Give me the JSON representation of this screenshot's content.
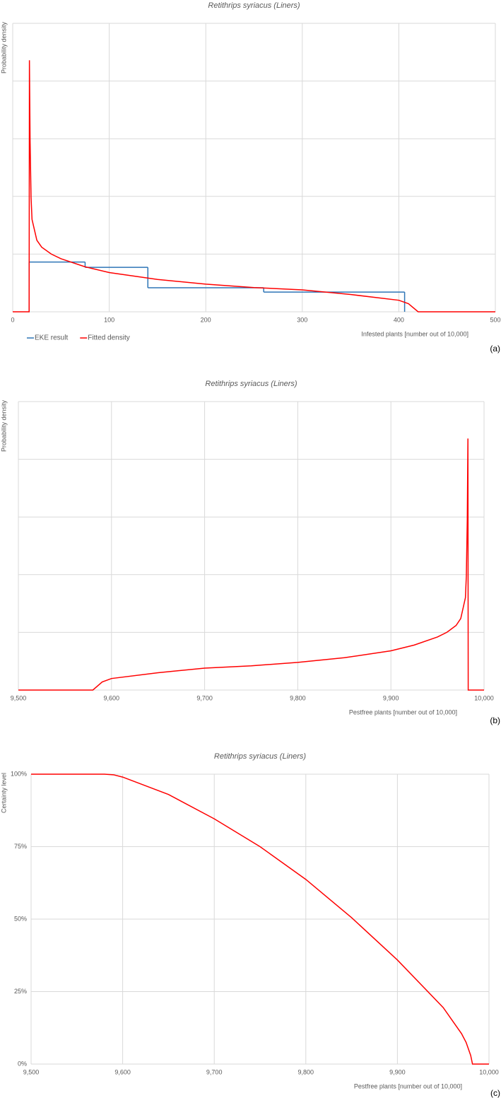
{
  "chart_data": [
    {
      "type": "line",
      "title": "Retithrips syriacus (Liners)",
      "y_label": "Probability density",
      "x_label": "Infested plants [number out of 10,000]",
      "panel_label": "(a)",
      "xlim": [
        0,
        500
      ],
      "xticks": [
        0,
        100,
        200,
        300,
        400,
        500
      ],
      "ylim": [
        0,
        0.025
      ],
      "ygrid": [
        0,
        0.005,
        0.01,
        0.015,
        0.02,
        0.025
      ],
      "grid": true,
      "legend": "bottom-left",
      "series": [
        {
          "name": "EKE result",
          "color": "#2e75b6",
          "kind": "step",
          "bins": [
            17,
            75,
            140,
            260,
            406
          ],
          "values": [
            0.00431,
            0.00385,
            0.00208,
            0.00171
          ]
        },
        {
          "name": "Fitted density",
          "color": "#ff0000",
          "kind": "line",
          "x": [
            0,
            17,
            17.3,
            18,
            19,
            20,
            25,
            30,
            40,
            50,
            75,
            100,
            150,
            200,
            250,
            300,
            350,
            400,
            410,
            420,
            500
          ],
          "values": [
            0,
            0,
            0.0218,
            0.0148,
            0.0099,
            0.008,
            0.0062,
            0.0056,
            0.005,
            0.0046,
            0.0039,
            0.0034,
            0.0028,
            0.0024,
            0.0021,
            0.0019,
            0.0015,
            0.001,
            0.0007,
            0,
            0
          ]
        }
      ]
    },
    {
      "type": "line",
      "title": "Retithrips syriacus (Liners)",
      "y_label": "Probability density",
      "x_label": "Pestfree plants [number out of 10,000]",
      "panel_label": "(b)",
      "xlim": [
        9500,
        10000
      ],
      "xticks": [
        {
          "value": 9500,
          "label": "9,500"
        },
        {
          "value": 9600,
          "label": "9,600"
        },
        {
          "value": 9700,
          "label": "9,700"
        },
        {
          "value": 9800,
          "label": "9,800"
        },
        {
          "value": 9900,
          "label": "9,900"
        },
        {
          "value": 10000,
          "label": "10,000"
        }
      ],
      "ylim": [
        0,
        0.025
      ],
      "ygrid": [
        0,
        0.005,
        0.01,
        0.015,
        0.02,
        0.025
      ],
      "grid": true,
      "series": [
        {
          "color": "#ff0000",
          "kind": "line",
          "x": [
            9500,
            9580,
            9590,
            9600,
            9650,
            9700,
            9750,
            9800,
            9850,
            9900,
            9925,
            9950,
            9960,
            9970,
            9975,
            9980,
            9981,
            9982,
            9982.7,
            9983,
            10000
          ],
          "values": [
            0,
            0,
            0.0007,
            0.001,
            0.0015,
            0.0019,
            0.0021,
            0.0024,
            0.0028,
            0.0034,
            0.0039,
            0.0046,
            0.005,
            0.0056,
            0.0062,
            0.008,
            0.0099,
            0.0148,
            0.0218,
            0,
            0
          ]
        }
      ]
    },
    {
      "type": "line",
      "title": "Retithrips syriacus (Liners)",
      "y_label": "Certainty level",
      "x_label": "Pestfree plants [number out of 10,000]",
      "panel_label": "(c)",
      "xlim": [
        9500,
        10000
      ],
      "xticks": [
        {
          "value": 9500,
          "label": "9,500"
        },
        {
          "value": 9600,
          "label": "9,600"
        },
        {
          "value": 9700,
          "label": "9,700"
        },
        {
          "value": 9800,
          "label": "9,800"
        },
        {
          "value": 9900,
          "label": "9,900"
        },
        {
          "value": 10000,
          "label": "10,000"
        }
      ],
      "ylim": [
        0,
        100
      ],
      "yticks": [
        {
          "value": 0,
          "label": "0%"
        },
        {
          "value": 25,
          "label": "25%"
        },
        {
          "value": 50,
          "label": "50%"
        },
        {
          "value": 75,
          "label": "75%"
        },
        {
          "value": 100,
          "label": "100%"
        }
      ],
      "grid": true,
      "series": [
        {
          "color": "#ff0000",
          "kind": "line",
          "x": [
            9500,
            9550,
            9580,
            9590,
            9600,
            9650,
            9700,
            9750,
            9800,
            9850,
            9900,
            9950,
            9970,
            9975,
            9980,
            9982,
            10000
          ],
          "values": [
            100,
            100,
            100,
            99.8,
            99,
            93,
            84.6,
            75,
            63.7,
            50.5,
            35.9,
            19.5,
            10.5,
            7.5,
            3,
            0,
            0
          ]
        }
      ]
    }
  ]
}
